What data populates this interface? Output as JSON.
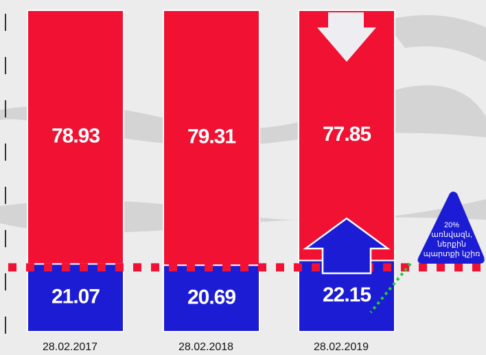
{
  "chart_data": {
    "type": "stacked_bar",
    "categories": [
      "28.02.2017",
      "28.02.2018",
      "28.02.2019"
    ],
    "series": [
      {
        "color": "#1c1cd4",
        "values": [
          21.07,
          20.69,
          22.15
        ]
      },
      {
        "color": "#f01133",
        "values": [
          78.93,
          79.31,
          77.85
        ]
      }
    ],
    "ylim": [
      0,
      100
    ],
    "threshold": 20,
    "threshold_color": "#f01133",
    "annotation": [
      "20%",
      "առնվազն,",
      "ներքին",
      "պարտքի կշիռ"
    ]
  }
}
